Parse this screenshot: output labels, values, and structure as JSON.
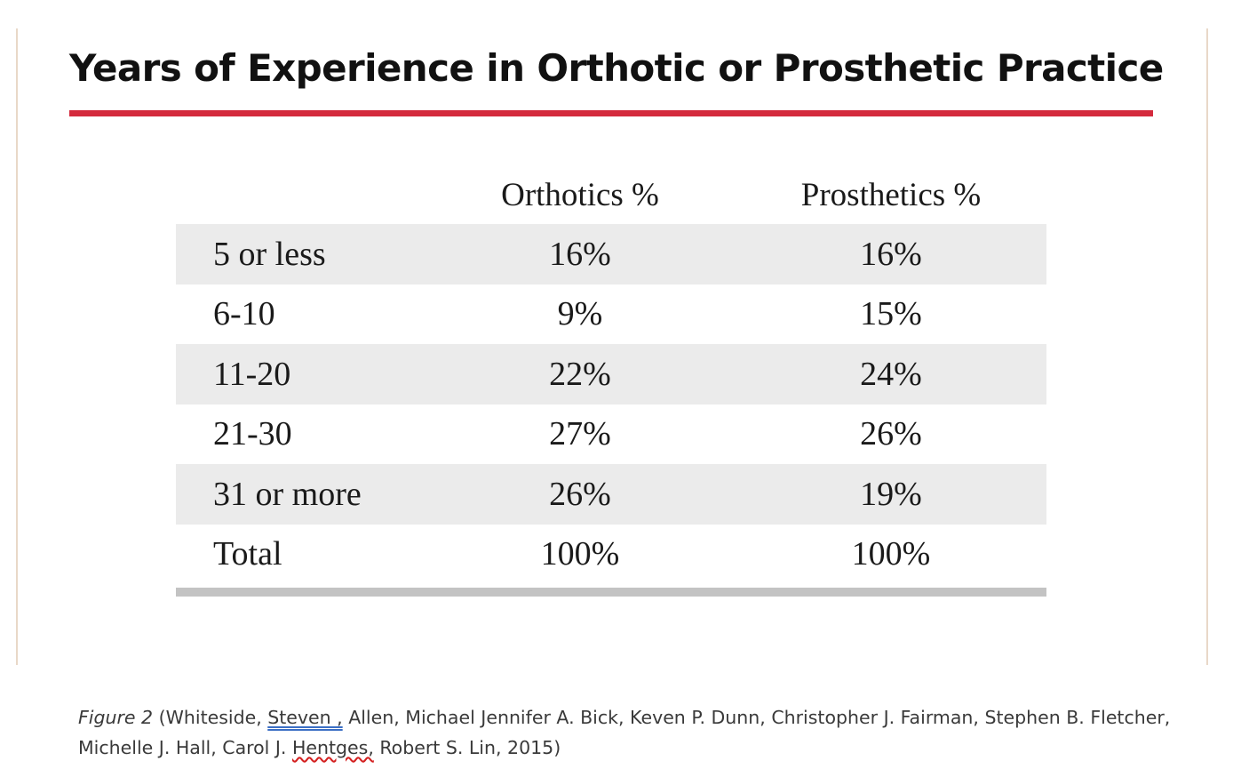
{
  "title": "Years of Experience in Orthotic or Prosthetic Practice",
  "table": {
    "headers": [
      "",
      "Orthotics %",
      "Prosthetics %"
    ],
    "rows": [
      {
        "label": "5 or less",
        "orthotics": "16%",
        "prosthetics": "16%"
      },
      {
        "label": "6-10",
        "orthotics": "9%",
        "prosthetics": "15%"
      },
      {
        "label": "11-20",
        "orthotics": "22%",
        "prosthetics": "24%"
      },
      {
        "label": "21-30",
        "orthotics": "27%",
        "prosthetics": "26%"
      },
      {
        "label": "31 or more",
        "orthotics": "26%",
        "prosthetics": "19%"
      },
      {
        "label": "Total",
        "orthotics": "100%",
        "prosthetics": "100%"
      }
    ]
  },
  "chart_data": {
    "type": "table",
    "title": "Years of Experience in Orthotic or Prosthetic Practice",
    "columns": [
      "",
      "Orthotics %",
      "Prosthetics %"
    ],
    "rows": [
      [
        "5 or less",
        "16%",
        "16%"
      ],
      [
        "6-10",
        "9%",
        "15%"
      ],
      [
        "11-20",
        "22%",
        "24%"
      ],
      [
        "21-30",
        "27%",
        "26%"
      ],
      [
        "31 or more",
        "26%",
        "19%"
      ],
      [
        "Total",
        "100%",
        "100%"
      ]
    ]
  },
  "caption": {
    "figure_label": "Figure 2",
    "part1": " (Whiteside, ",
    "underlined_name": "Steven ,",
    "part2": " Allen, Michael Jennifer A. Bick, Keven P. Dunn, Christopher J. Fairman, Stephen B. Fletcher,",
    "line2_part1": "Michelle J. Hall, Carol J. ",
    "misspelled_name": "Hentges,",
    "line2_part2": " Robert S. Lin, 2015)"
  },
  "colors": {
    "accent_rule": "#d42a3d",
    "row_shade": "#ebebeb",
    "table_bottom_rule": "#c3c3c3",
    "frame_border": "#e9d8c8"
  }
}
